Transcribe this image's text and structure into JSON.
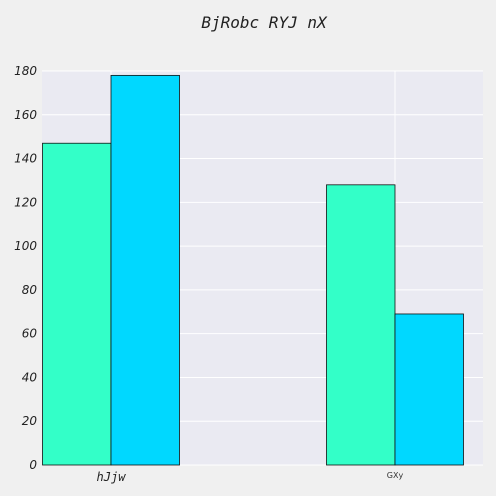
{
  "chart_data": {
    "type": "bar",
    "title": "BjRobc RYJ nX",
    "categories": [
      "hJjw",
      "GXy"
    ],
    "series": [
      {
        "values": [
          147,
          128
        ],
        "color": "#33ffc8"
      },
      {
        "values": [
          178,
          69
        ],
        "color": "#00d8ff"
      }
    ],
    "xlabel": "",
    "ylabel": "",
    "ylim": [
      0,
      180
    ],
    "yticks": [
      0,
      20,
      40,
      60,
      80,
      100,
      120,
      140,
      160,
      180
    ],
    "grid": true,
    "legend": "none",
    "background": "#eaeaf2"
  }
}
